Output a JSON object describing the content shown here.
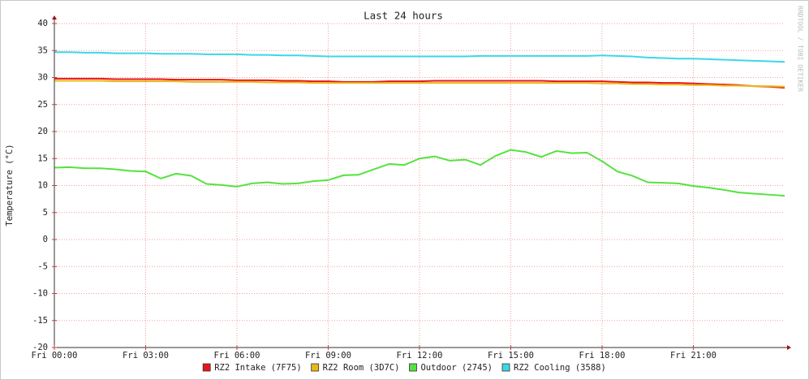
{
  "chart_data": {
    "type": "line",
    "title": "Last 24 hours",
    "y_label": "Temperature (°C)",
    "watermark": "RRDTOOL / TOBI OETIKER",
    "x": [
      0,
      0.5,
      1,
      1.5,
      2,
      2.5,
      3,
      3.5,
      4,
      4.5,
      5,
      5.5,
      6,
      6.5,
      7,
      7.5,
      8,
      8.5,
      9,
      9.5,
      10,
      10.5,
      11,
      11.5,
      12,
      12.5,
      13,
      13.5,
      14,
      14.5,
      15,
      15.5,
      16,
      16.5,
      17,
      17.5,
      18,
      18.5,
      19,
      19.5,
      20,
      20.5,
      21,
      21.5,
      22,
      22.5,
      23,
      23.5,
      24
    ],
    "xlim": [
      0,
      24
    ],
    "xticks": [
      {
        "value": 0,
        "label": "Fri 00:00"
      },
      {
        "value": 3,
        "label": "Fri 03:00"
      },
      {
        "value": 6,
        "label": "Fri 06:00"
      },
      {
        "value": 9,
        "label": "Fri 09:00"
      },
      {
        "value": 12,
        "label": "Fri 12:00"
      },
      {
        "value": 15,
        "label": "Fri 15:00"
      },
      {
        "value": 18,
        "label": "Fri 18:00"
      },
      {
        "value": 21,
        "label": "Fri 21:00"
      }
    ],
    "ylim": [
      -20,
      40
    ],
    "yticks": [
      -20,
      -15,
      -10,
      -5,
      0,
      5,
      10,
      15,
      20,
      25,
      30,
      35,
      40
    ],
    "grid": true,
    "legend": "bottom",
    "series": [
      {
        "name": "RZ2 Intake (7F75)",
        "color": "#e8161a",
        "values": [
          29.8,
          29.8,
          29.8,
          29.8,
          29.7,
          29.7,
          29.7,
          29.7,
          29.6,
          29.6,
          29.6,
          29.6,
          29.5,
          29.5,
          29.5,
          29.4,
          29.4,
          29.3,
          29.3,
          29.2,
          29.2,
          29.2,
          29.3,
          29.3,
          29.3,
          29.4,
          29.4,
          29.4,
          29.4,
          29.4,
          29.4,
          29.4,
          29.4,
          29.3,
          29.3,
          29.3,
          29.3,
          29.2,
          29.1,
          29.1,
          29.0,
          29.0,
          28.9,
          28.8,
          28.7,
          28.6,
          28.4,
          28.3,
          28.1
        ]
      },
      {
        "name": "RZ2 Room (3D7C)",
        "color": "#e8b816",
        "values": [
          29.4,
          29.4,
          29.4,
          29.4,
          29.3,
          29.3,
          29.3,
          29.3,
          29.3,
          29.2,
          29.2,
          29.2,
          29.2,
          29.2,
          29.1,
          29.1,
          29.1,
          29.0,
          29.0,
          29.0,
          29.0,
          29.0,
          29.0,
          29.0,
          29.0,
          29.0,
          29.0,
          29.0,
          29.0,
          29.0,
          29.0,
          29.0,
          29.0,
          29.0,
          29.0,
          29.0,
          28.9,
          28.9,
          28.8,
          28.8,
          28.7,
          28.7,
          28.6,
          28.6,
          28.5,
          28.5,
          28.4,
          28.4,
          28.3
        ]
      },
      {
        "name": "Outdoor (2745)",
        "color": "#54e33e",
        "values": [
          13.3,
          13.4,
          13.2,
          13.2,
          13.0,
          12.7,
          12.6,
          11.3,
          12.2,
          11.8,
          10.3,
          10.1,
          9.8,
          10.4,
          10.6,
          10.3,
          10.4,
          10.8,
          11.0,
          11.9,
          12.0,
          13.0,
          14.0,
          13.8,
          15.0,
          15.4,
          14.6,
          14.8,
          13.8,
          15.5,
          16.6,
          16.2,
          15.3,
          16.4,
          16.0,
          16.1,
          14.5,
          12.6,
          11.8,
          10.6,
          10.5,
          10.4,
          9.9,
          9.6,
          9.2,
          8.7,
          8.5,
          8.3,
          8.1
        ]
      },
      {
        "name": "RZ2 Cooling (3588)",
        "color": "#3cd7e6",
        "values": [
          34.7,
          34.7,
          34.6,
          34.6,
          34.5,
          34.5,
          34.5,
          34.4,
          34.4,
          34.4,
          34.3,
          34.3,
          34.3,
          34.2,
          34.2,
          34.1,
          34.1,
          34.0,
          33.9,
          33.9,
          33.9,
          33.9,
          33.9,
          33.9,
          33.9,
          33.9,
          33.9,
          33.9,
          34.0,
          34.0,
          34.0,
          34.0,
          34.0,
          34.0,
          34.0,
          34.0,
          34.1,
          34.0,
          33.9,
          33.7,
          33.6,
          33.5,
          33.5,
          33.4,
          33.3,
          33.2,
          33.1,
          33.0,
          32.9
        ]
      }
    ]
  }
}
